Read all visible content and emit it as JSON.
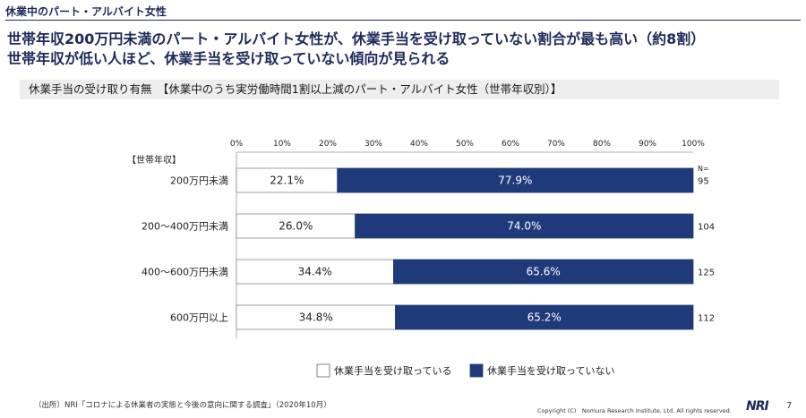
{
  "header": {
    "section": "休業中のパート・アルバイト女性",
    "headline_line1": "世帯年収200万円未満のパート・アルバイト女性が、休業手当を受け取っていない割合が最も高い（約8割）",
    "headline_line2": "世帯年収が低い人ほど、休業手当を受け取っていない傾向が見られる",
    "subheader": "休業手当の受け取り有無　【休業中のうち実労働時間1割以上減のパート・アルバイト女性（世帯年収別）】"
  },
  "chart_data": {
    "type": "bar",
    "orientation": "horizontal",
    "stacked": true,
    "group_axis_label": "【世帯年収】",
    "n_label": "N=",
    "xticks": [
      "0%",
      "10%",
      "20%",
      "30%",
      "40%",
      "50%",
      "60%",
      "70%",
      "80%",
      "90%",
      "100%"
    ],
    "xlim": [
      0,
      100
    ],
    "categories": [
      "200万円未満",
      "200～400万円未満",
      "400～600万円未満",
      "600万円以上"
    ],
    "n": [
      "95",
      "104",
      "125",
      "112"
    ],
    "series": [
      {
        "name": "休業手当を受け取っている",
        "values": [
          22.1,
          26.0,
          34.4,
          34.8
        ],
        "labels": [
          "22.1%",
          "26.0%",
          "34.4%",
          "34.8%"
        ],
        "color": "#ffffff"
      },
      {
        "name": "休業手当を受け取っていない",
        "values": [
          77.9,
          74.0,
          65.6,
          65.2
        ],
        "labels": [
          "77.9%",
          "74.0%",
          "65.6%",
          "65.2%"
        ],
        "color": "#1f3a7a"
      }
    ],
    "legend_position": "bottom",
    "grid": false
  },
  "footer": {
    "source": "（出所）NRI「コロナによる休業者の実態と今後の意向に関する調査」（2020年10月）",
    "copyright": "Copyright (C)　Nomura Research Institute, Ltd. All rights reserved.",
    "logo": "NRI",
    "page": "7"
  }
}
